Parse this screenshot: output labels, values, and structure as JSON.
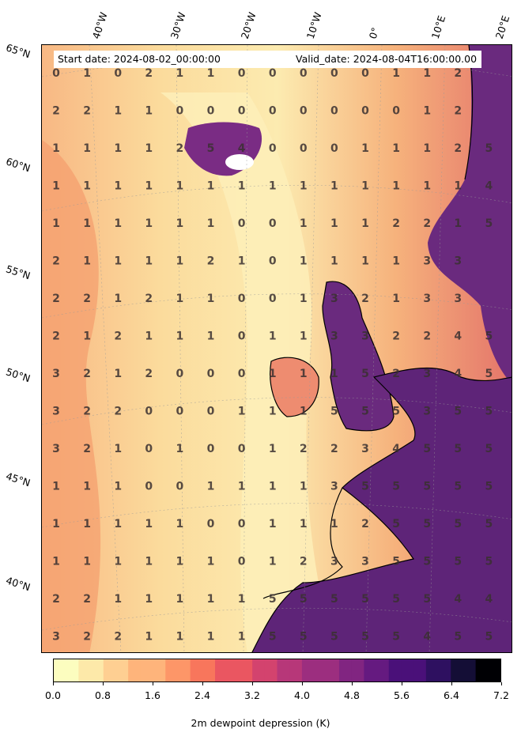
{
  "header": {
    "start_date": "Start date: 2024-08-02_00:00:00",
    "valid_date": "Valid_date: 2024-08-04T16:00:00.00"
  },
  "lat_labels": [
    "65°N",
    "60°N",
    "55°N",
    "50°N",
    "45°N",
    "40°N"
  ],
  "lon_labels": [
    "40°W",
    "30°W",
    "20°W",
    "10°W",
    "0°",
    "10°E",
    "20°E"
  ],
  "colorbar": {
    "label": "2m dewpoint depression (K)",
    "ticks": [
      "0.0",
      "0.8",
      "1.6",
      "2.4",
      "3.2",
      "4.0",
      "4.8",
      "5.6",
      "6.4",
      "7.2"
    ],
    "colormap": "magma_r",
    "range": [
      0,
      7.2
    ]
  },
  "grid_values": [
    [
      "0",
      "1",
      "0",
      "2",
      "1",
      "1",
      "0",
      "0",
      "0",
      "0",
      "0",
      "1",
      "1",
      "2"
    ],
    [
      "2",
      "2",
      "1",
      "1",
      "0",
      "0",
      "0",
      "0",
      "0",
      "0",
      "0",
      "0",
      "1",
      "2"
    ],
    [
      "1",
      "1",
      "1",
      "1",
      "2",
      "5",
      "4",
      "0",
      "0",
      "0",
      "1",
      "1",
      "1",
      "2",
      "5"
    ],
    [
      "1",
      "1",
      "1",
      "1",
      "1",
      "1",
      "1",
      "1",
      "1",
      "1",
      "1",
      "1",
      "1",
      "1",
      "4"
    ],
    [
      "1",
      "1",
      "1",
      "1",
      "1",
      "1",
      "0",
      "0",
      "1",
      "1",
      "1",
      "2",
      "2",
      "1",
      "5"
    ],
    [
      "2",
      "1",
      "1",
      "1",
      "1",
      "2",
      "1",
      "0",
      "1",
      "1",
      "1",
      "1",
      "3",
      "3"
    ],
    [
      "2",
      "2",
      "1",
      "2",
      "1",
      "1",
      "0",
      "0",
      "1",
      "3",
      "2",
      "1",
      "3",
      "3"
    ],
    [
      "2",
      "1",
      "2",
      "1",
      "1",
      "1",
      "0",
      "1",
      "1",
      "3",
      "3",
      "2",
      "2",
      "4",
      "5"
    ],
    [
      "3",
      "2",
      "1",
      "2",
      "0",
      "0",
      "0",
      "1",
      "1",
      "1",
      "5",
      "2",
      "3",
      "4",
      "5"
    ],
    [
      "3",
      "2",
      "2",
      "0",
      "0",
      "0",
      "1",
      "1",
      "1",
      "5",
      "5",
      "5",
      "3",
      "5",
      "5"
    ],
    [
      "3",
      "2",
      "1",
      "0",
      "1",
      "0",
      "0",
      "1",
      "2",
      "2",
      "3",
      "4",
      "5",
      "5",
      "5"
    ],
    [
      "1",
      "1",
      "1",
      "0",
      "0",
      "1",
      "1",
      "1",
      "1",
      "3",
      "5",
      "5",
      "5",
      "5",
      "5"
    ],
    [
      "1",
      "1",
      "1",
      "1",
      "1",
      "0",
      "0",
      "1",
      "1",
      "1",
      "2",
      "5",
      "5",
      "5",
      "5"
    ],
    [
      "1",
      "1",
      "1",
      "1",
      "1",
      "1",
      "0",
      "1",
      "2",
      "3",
      "3",
      "5",
      "5",
      "5",
      "5"
    ],
    [
      "2",
      "2",
      "1",
      "1",
      "1",
      "1",
      "1",
      "5",
      "5",
      "5",
      "5",
      "5",
      "5",
      "4",
      "4"
    ],
    [
      "3",
      "2",
      "2",
      "1",
      "1",
      "1",
      "1",
      "5",
      "5",
      "5",
      "5",
      "5",
      "4",
      "5",
      "5"
    ]
  ],
  "colors": {
    "low": "#fcf0b4",
    "mid": "#f4a06e",
    "high": "#6a2a7e",
    "land_dark": "#5a1f78",
    "ice": "#ffffff"
  }
}
